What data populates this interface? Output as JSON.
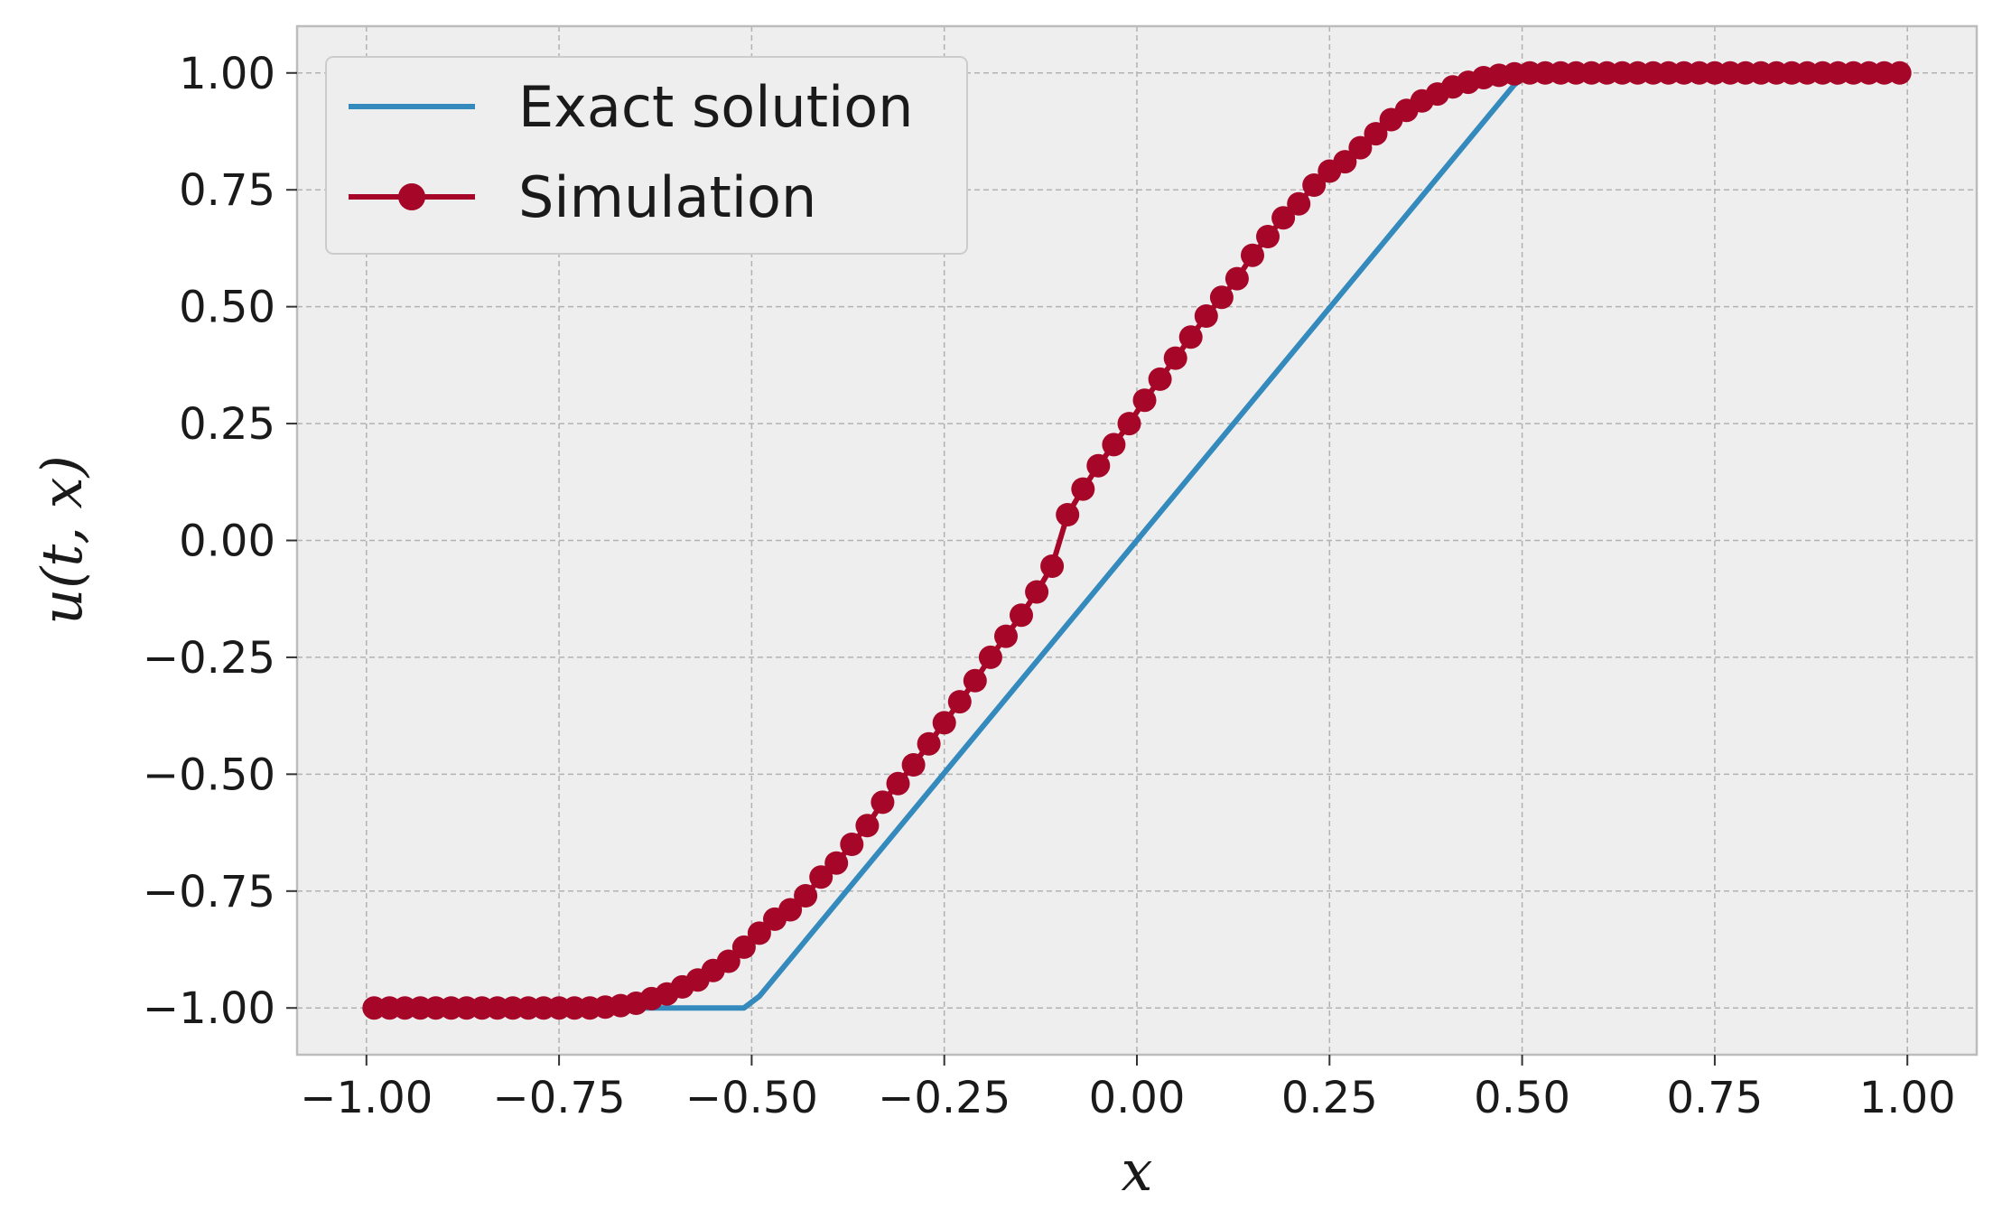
{
  "colors": {
    "exact": "#348abd",
    "simulation": "#a60628",
    "plot_bg": "#eeeeee",
    "frame": "#bcbcbc"
  },
  "chart_data": {
    "type": "line",
    "title": "",
    "xlabel": "x",
    "ylabel": "u(t, x)",
    "xlim": [
      -1.09,
      1.09
    ],
    "ylim": [
      -1.1,
      1.1
    ],
    "xticks": [
      -1.0,
      -0.75,
      -0.5,
      -0.25,
      0.0,
      0.25,
      0.5,
      0.75,
      1.0
    ],
    "xtick_labels": [
      "−1.00",
      "−0.75",
      "−0.50",
      "−0.25",
      "0.00",
      "0.25",
      "0.50",
      "0.75",
      "1.00"
    ],
    "yticks": [
      -1.0,
      -0.75,
      -0.5,
      -0.25,
      0.0,
      0.25,
      0.5,
      0.75,
      1.0
    ],
    "ytick_labels": [
      "−1.00",
      "−0.75",
      "−0.50",
      "−0.25",
      "0.00",
      "0.25",
      "0.50",
      "0.75",
      "1.00"
    ],
    "grid": true,
    "legend_position": "upper-left",
    "series": [
      {
        "name": "Exact solution",
        "marker": "none",
        "x": [
          -0.99,
          -0.51,
          -0.49,
          0.49,
          0.51,
          0.99
        ],
        "y": [
          -1.0,
          -1.0,
          -0.975,
          0.975,
          1.0,
          1.0
        ]
      },
      {
        "name": "Simulation",
        "marker": "circle",
        "x": [
          -0.99,
          -0.97,
          -0.95,
          -0.93,
          -0.91,
          -0.89,
          -0.87,
          -0.85,
          -0.83,
          -0.81,
          -0.79,
          -0.77,
          -0.75,
          -0.73,
          -0.71,
          -0.69,
          -0.67,
          -0.65,
          -0.63,
          -0.61,
          -0.59,
          -0.57,
          -0.55,
          -0.53,
          -0.51,
          -0.49,
          -0.47,
          -0.45,
          -0.43,
          -0.41,
          -0.39,
          -0.37,
          -0.35,
          -0.33,
          -0.31,
          -0.29,
          -0.27,
          -0.25,
          -0.23,
          -0.21,
          -0.19,
          -0.17,
          -0.15,
          -0.13,
          -0.11,
          -0.09,
          -0.07,
          -0.05,
          -0.03,
          -0.01,
          0.01,
          0.03,
          0.05,
          0.07,
          0.09,
          0.11,
          0.13,
          0.15,
          0.17,
          0.19,
          0.21,
          0.23,
          0.25,
          0.27,
          0.29,
          0.31,
          0.33,
          0.35,
          0.37,
          0.39,
          0.41,
          0.43,
          0.45,
          0.47,
          0.49,
          0.51,
          0.53,
          0.55,
          0.57,
          0.59,
          0.61,
          0.63,
          0.65,
          0.67,
          0.69,
          0.71,
          0.73,
          0.75,
          0.77,
          0.79,
          0.81,
          0.83,
          0.85,
          0.87,
          0.89,
          0.91,
          0.93,
          0.95,
          0.97,
          0.99
        ],
        "y": [
          -1.0,
          -1.0,
          -1.0,
          -1.0,
          -1.0,
          -1.0,
          -1.0,
          -1.0,
          -1.0,
          -1.0,
          -1.0,
          -1.0,
          -1.0,
          -1.0,
          -1.0,
          -0.998,
          -0.995,
          -0.99,
          -0.98,
          -0.97,
          -0.955,
          -0.94,
          -0.92,
          -0.9,
          -0.87,
          -0.84,
          -0.81,
          -0.79,
          -0.76,
          -0.72,
          -0.69,
          -0.65,
          -0.61,
          -0.56,
          -0.52,
          -0.48,
          -0.435,
          -0.39,
          -0.345,
          -0.3,
          -0.25,
          -0.205,
          -0.16,
          -0.11,
          -0.055,
          0.055,
          0.11,
          0.16,
          0.205,
          0.25,
          0.3,
          0.345,
          0.39,
          0.435,
          0.48,
          0.52,
          0.56,
          0.61,
          0.65,
          0.69,
          0.72,
          0.76,
          0.79,
          0.81,
          0.84,
          0.87,
          0.9,
          0.92,
          0.94,
          0.955,
          0.97,
          0.98,
          0.99,
          0.995,
          0.998,
          1.0,
          1.0,
          1.0,
          1.0,
          1.0,
          1.0,
          1.0,
          1.0,
          1.0,
          1.0,
          1.0,
          1.0,
          1.0,
          1.0,
          1.0,
          1.0,
          1.0,
          1.0,
          1.0,
          1.0,
          1.0,
          1.0,
          1.0,
          1.0,
          1.0
        ]
      }
    ]
  }
}
